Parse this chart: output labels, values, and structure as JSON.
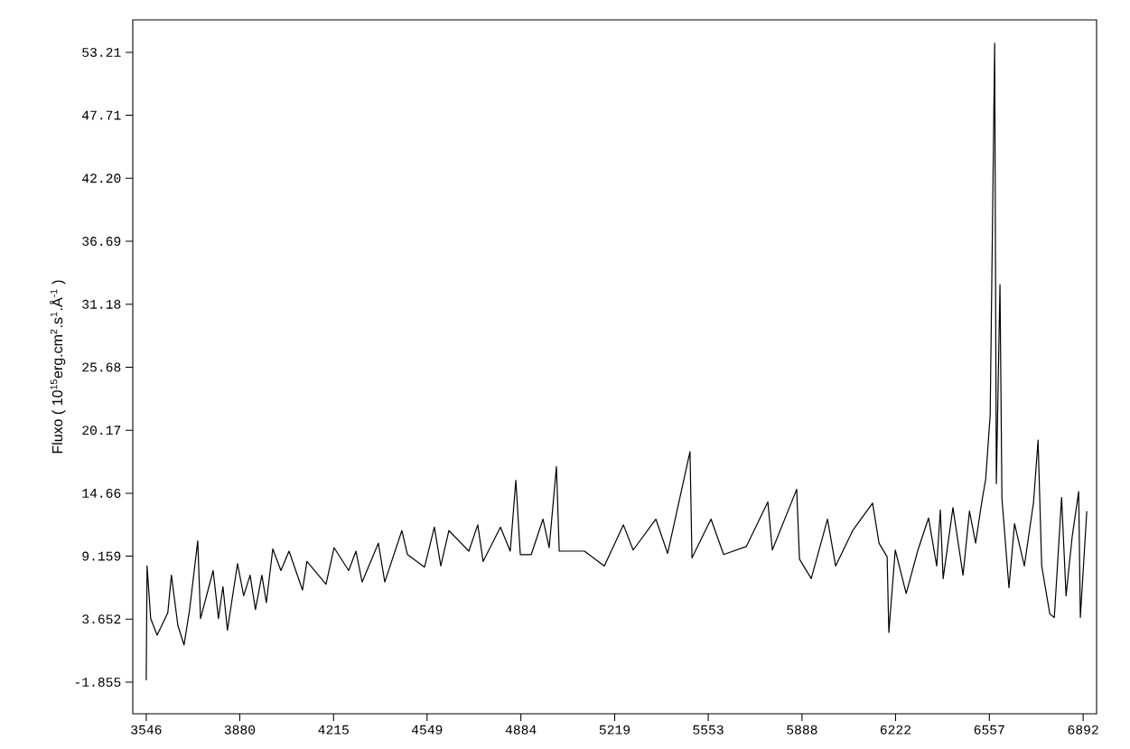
{
  "chart_data": {
    "type": "line",
    "ylabel": "Fluxo ( 10$^{15}$erg.cm$^{2}$.s$^{1}$.Å$^{-1}$ )",
    "xlim": [
      3498,
      6940
    ],
    "ylim": [
      -4.62,
      56.05
    ],
    "xticks": [
      3546,
      3880,
      4215,
      4549,
      4884,
      5219,
      5553,
      5888,
      6222,
      6557,
      6892
    ],
    "yticks": [
      -1.855,
      3.652,
      9.159,
      14.66,
      20.17,
      25.68,
      31.18,
      36.69,
      {
        "value": 42.2,
        "label": "42.20"
      },
      47.71,
      53.21
    ],
    "series": [
      {
        "color": "#000000",
        "x": [
          3546,
          3549,
          3562,
          3585,
          3623,
          3636,
          3659,
          3681,
          3701,
          3730,
          3740,
          3785,
          3804,
          3820,
          3836,
          3872,
          3894,
          3917,
          3936,
          3959,
          3975,
          3998,
          4027,
          4056,
          4104,
          4120,
          4188,
          4217,
          4269,
          4295,
          4317,
          4375,
          4398,
          4459,
          4479,
          4540,
          4575,
          4598,
          4627,
          4698,
          4730,
          4749,
          4811,
          4846,
          4866,
          4882,
          4921,
          4963,
          4985,
          5011,
          5021,
          5111,
          5182,
          5250,
          5285,
          5366,
          5408,
          5488,
          5495,
          5563,
          5608,
          5689,
          5766,
          5782,
          5869,
          5879,
          5921,
          5979,
          6008,
          6069,
          6140,
          6163,
          6192,
          6198,
          6221,
          6260,
          6302,
          6340,
          6369,
          6382,
          6392,
          6427,
          6463,
          6486,
          6508,
          6530,
          6544,
          6560,
          6576,
          6582,
          6595,
          6602,
          6627,
          6647,
          6682,
          6715,
          6731,
          6744,
          6773,
          6789,
          6815,
          6831,
          6853,
          6876,
          6882,
          6905
        ],
        "values": [
          -1.7,
          8.3,
          3.7,
          2.25,
          4.2,
          7.5,
          3.1,
          1.4,
          4.5,
          10.5,
          3.7,
          7.9,
          3.7,
          6.5,
          2.7,
          8.5,
          5.7,
          7.5,
          4.5,
          7.5,
          5.1,
          9.8,
          7.9,
          9.6,
          6.2,
          8.7,
          6.7,
          9.9,
          7.9,
          9.6,
          6.9,
          10.3,
          6.9,
          11.4,
          9.3,
          8.2,
          11.7,
          8.3,
          11.4,
          9.6,
          11.9,
          8.7,
          11.7,
          9.6,
          15.8,
          9.3,
          9.3,
          12.4,
          9.9,
          17.0,
          9.6,
          9.6,
          8.3,
          11.9,
          9.7,
          12.4,
          9.4,
          18.3,
          9.0,
          12.4,
          9.3,
          10.0,
          13.9,
          9.7,
          15.0,
          8.9,
          7.2,
          12.4,
          8.3,
          11.4,
          13.8,
          10.3,
          9.1,
          2.5,
          9.7,
          5.9,
          9.7,
          12.5,
          8.3,
          13.2,
          7.2,
          13.4,
          7.5,
          13.1,
          10.3,
          13.9,
          15.9,
          21.5,
          54.0,
          15.5,
          32.9,
          14.2,
          6.4,
          12.0,
          8.3,
          13.9,
          19.3,
          8.3,
          4.1,
          3.8,
          14.3,
          5.7,
          10.9,
          14.8,
          3.8,
          13.1
        ]
      }
    ]
  }
}
